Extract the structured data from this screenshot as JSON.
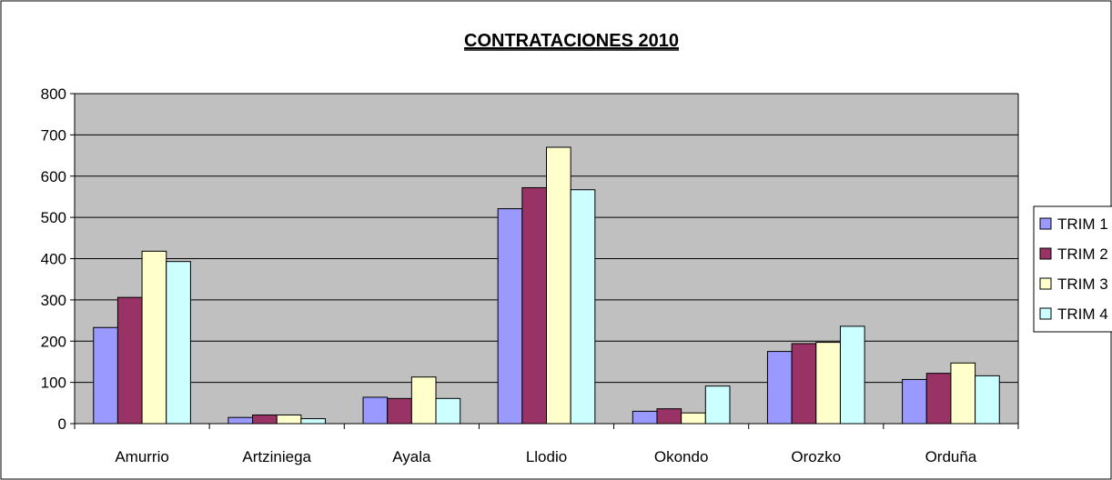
{
  "chart_data": {
    "type": "bar",
    "title": "CONTRATACIONES 2010",
    "xlabel": "",
    "ylabel": "",
    "categories": [
      "Amurrio",
      "Artziniega",
      "Ayala",
      "Llodio",
      "Okondo",
      "Orozko",
      "Orduña"
    ],
    "ylim": [
      0,
      800
    ],
    "yticks": [
      0,
      100,
      200,
      300,
      400,
      500,
      600,
      700,
      800
    ],
    "grid": true,
    "legend_position": "right",
    "plot_background": "#c0c0c0",
    "series": [
      {
        "name": "TRIM 1",
        "color": "#9999ff",
        "values": [
          233,
          15,
          64,
          521,
          30,
          175,
          107
        ]
      },
      {
        "name": "TRIM 2",
        "color": "#993366",
        "values": [
          306,
          21,
          61,
          572,
          36,
          194,
          122
        ]
      },
      {
        "name": "TRIM 3",
        "color": "#ffffcc",
        "values": [
          418,
          21,
          113,
          670,
          26,
          197,
          147
        ]
      },
      {
        "name": "TRIM 4",
        "color": "#ccffff",
        "values": [
          393,
          12,
          61,
          567,
          91,
          236,
          116
        ]
      }
    ]
  }
}
